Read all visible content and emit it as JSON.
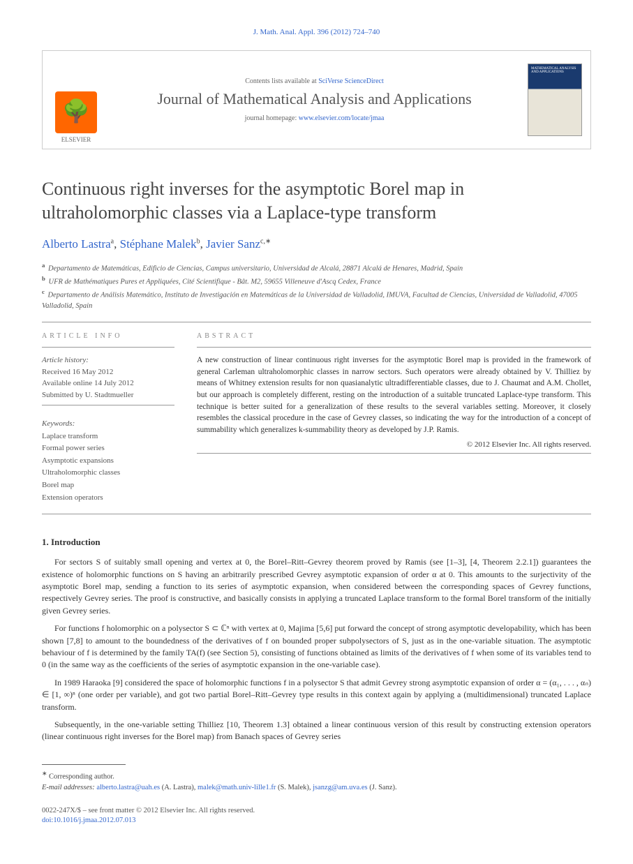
{
  "header": {
    "citation": "J. Math. Anal. Appl. 396 (2012) 724–740",
    "contents_prefix": "Contents lists available at ",
    "contents_link": "SciVerse ScienceDirect",
    "journal_name": "Journal of Mathematical Analysis and Applications",
    "homepage_prefix": "journal homepage: ",
    "homepage_link": "www.elsevier.com/locate/jmaa",
    "publisher": "ELSEVIER"
  },
  "article": {
    "title": "Continuous right inverses for the asymptotic Borel map in ultraholomorphic classes via a Laplace-type transform",
    "authors_html": "Alberto Lastra <sup>a</sup>, Stéphane Malek <sup>b</sup>, Javier Sanz <sup>c,</sup>",
    "authors_plain": "Alberto Lastra a, Stéphane Malek b, Javier Sanz c,*",
    "affiliations": [
      "Departamento de Matemáticas, Edificio de Ciencias, Campus universitario, Universidad de Alcalá, 28871 Alcalá de Henares, Madrid, Spain",
      "UFR de Mathématiques Pures et Appliquées, Cité Scientifique - Bât. M2, 59655 Villeneuve d'Ascq Cedex, France",
      "Departamento de Análisis Matemático, Instituto de Investigación en Matemáticas de la Universidad de Valladolid, IMUVA, Facultad de Ciencias, Universidad de Valladolid, 47005 Valladolid, Spain"
    ],
    "aff_labels": [
      "a",
      "b",
      "c"
    ]
  },
  "info": {
    "section_label": "ARTICLE INFO",
    "history_label": "Article history:",
    "history": [
      "Received 16 May 2012",
      "Available online 14 July 2012",
      "Submitted by U. Stadtmueller"
    ],
    "keywords_label": "Keywords:",
    "keywords": [
      "Laplace transform",
      "Formal power series",
      "Asymptotic expansions",
      "Ultraholomorphic classes",
      "Borel map",
      "Extension operators"
    ]
  },
  "abstract": {
    "section_label": "ABSTRACT",
    "text": "A new construction of linear continuous right inverses for the asymptotic Borel map is provided in the framework of general Carleman ultraholomorphic classes in narrow sectors. Such operators were already obtained by V. Thilliez by means of Whitney extension results for non quasianalytic ultradifferentiable classes, due to J. Chaumat and A.M. Chollet, but our approach is completely different, resting on the introduction of a suitable truncated Laplace-type transform. This technique is better suited for a generalization of these results to the several variables setting. Moreover, it closely resembles the classical procedure in the case of Gevrey classes, so indicating the way for the introduction of a concept of summability which generalizes k-summability theory as developed by J.P. Ramis.",
    "copyright": "© 2012 Elsevier Inc. All rights reserved."
  },
  "body": {
    "section_number": "1.",
    "section_title": "Introduction",
    "paragraphs": [
      "For sectors S of suitably small opening and vertex at 0, the Borel–Ritt–Gevrey theorem proved by Ramis (see [1–3], [4, Theorem 2.2.1]) guarantees the existence of holomorphic functions on S having an arbitrarily prescribed Gevrey asymptotic expansion of order α at 0. This amounts to the surjectivity of the asymptotic Borel map, sending a function to its series of asymptotic expansion, when considered between the corresponding spaces of Gevrey functions, respectively Gevrey series. The proof is constructive, and basically consists in applying a truncated Laplace transform to the formal Borel transform of the initially given Gevrey series.",
      "For functions f holomorphic on a polysector S ⊂ ℂⁿ with vertex at 0, Majima [5,6] put forward the concept of strong asymptotic developability, which has been shown [7,8] to amount to the boundedness of the derivatives of f on bounded proper subpolysectors of S, just as in the one-variable situation. The asymptotic behaviour of f is determined by the family TA(f) (see Section 5), consisting of functions obtained as limits of the derivatives of f when some of its variables tend to 0 (in the same way as the coefficients of the series of asymptotic expansion in the one-variable case).",
      "In 1989 Haraoka [9] considered the space of holomorphic functions f in a polysector S that admit Gevrey strong asymptotic expansion of order α = (α₁, . . . , αₙ) ∈ [1, ∞)ⁿ (one order per variable), and got two partial Borel–Ritt–Gevrey type results in this context again by applying a (multidimensional) truncated Laplace transform.",
      "Subsequently, in the one-variable setting Thilliez [10, Theorem 1.3] obtained a linear continuous version of this result by constructing extension operators (linear continuous right inverses for the Borel map) from Banach spaces of Gevrey series"
    ],
    "refs": [
      "1–3",
      "4",
      "5,6",
      "7,8",
      "9",
      "10"
    ]
  },
  "footnotes": {
    "corresponding": "Corresponding author.",
    "email_label": "E-mail addresses:",
    "emails": [
      {
        "addr": "alberto.lastra@uah.es",
        "who": "(A. Lastra)"
      },
      {
        "addr": "malek@math.univ-lille1.fr",
        "who": "(S. Malek)"
      },
      {
        "addr": "jsanzg@am.uva.es",
        "who": "(J. Sanz)"
      }
    ]
  },
  "bottom": {
    "line1": "0022-247X/$ – see front matter © 2012 Elsevier Inc. All rights reserved.",
    "doi_label": "doi:",
    "doi": "10.1016/j.jmaa.2012.07.013"
  },
  "colors": {
    "link": "#3366cc",
    "text": "#333333",
    "muted": "#666666",
    "accent": "#ff6600"
  }
}
